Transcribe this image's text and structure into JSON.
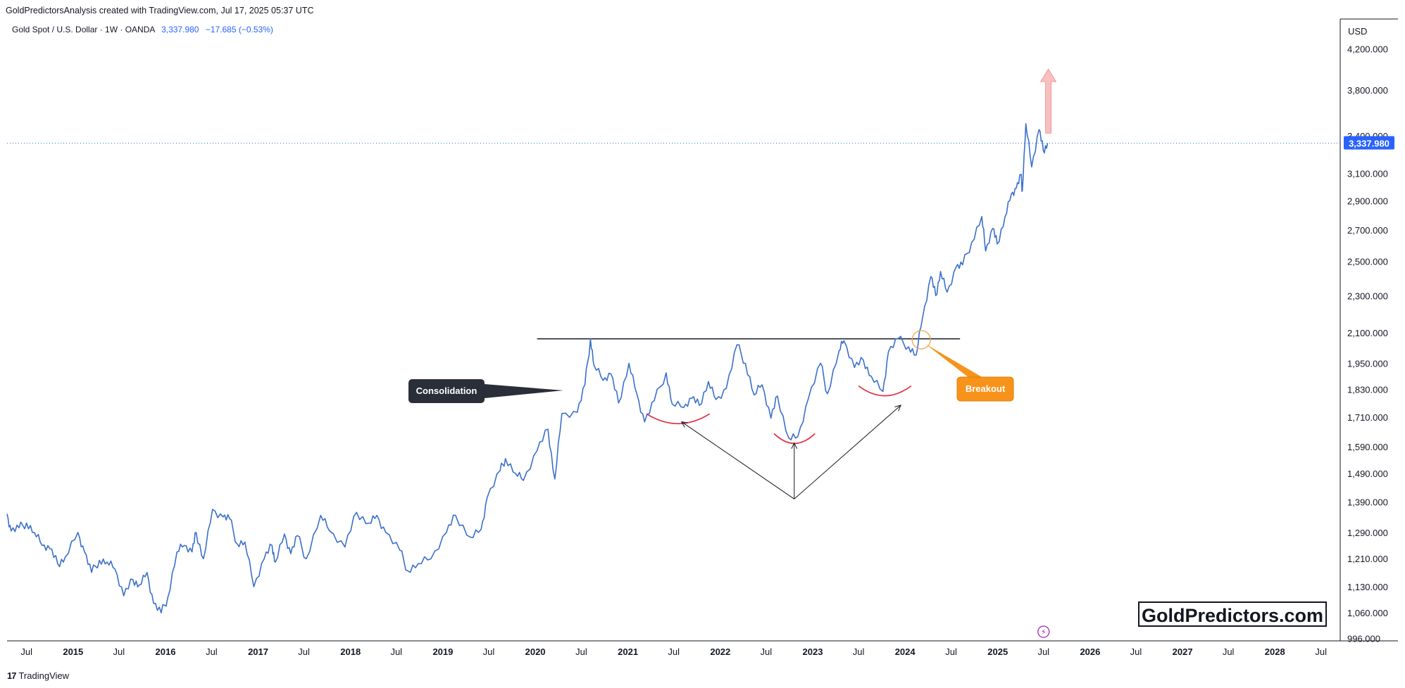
{
  "header": {
    "created_by": "GoldPredictorsAnalysis created with TradingView.com, Jul 17, 2025 05:37 UTC"
  },
  "symbol": {
    "description": "Gold Spot / U.S. Dollar · 1W · OANDA",
    "last_price": "3,337.980",
    "change": "−17.685 (−0.53%)"
  },
  "footer": {
    "brand": "TradingView",
    "logo_text": "17"
  },
  "watermark": {
    "text": "GoldPredictors.com"
  },
  "colors": {
    "price_line": "#3a6fcb",
    "accent_blue": "#2962ff",
    "resistance": "#131722",
    "cup_arcs": "#e03a4e",
    "breakout_callout": "#f7931a",
    "consolidation_callout": "#2a2e39",
    "arrow_up": "#f6b4b4",
    "breakout_circle": "#e9a94a"
  },
  "chart_data": {
    "type": "line",
    "series": [
      {
        "values_x_date": [
          [
            "2014-04-15",
            1350
          ],
          [
            "2014-05-01",
            1295
          ],
          [
            "2014-06-01",
            1305
          ],
          [
            "2014-07-01",
            1320
          ],
          [
            "2014-08-01",
            1290
          ],
          [
            "2014-09-01",
            1250
          ],
          [
            "2014-10-01",
            1240
          ],
          [
            "2014-11-01",
            1195
          ],
          [
            "2014-12-01",
            1215
          ],
          [
            "2015-01-20",
            1290
          ],
          [
            "2015-02-15",
            1230
          ],
          [
            "2015-03-15",
            1170
          ],
          [
            "2015-04-15",
            1205
          ],
          [
            "2015-05-15",
            1200
          ],
          [
            "2015-06-15",
            1180
          ],
          [
            "2015-07-20",
            1105
          ],
          [
            "2015-08-25",
            1150
          ],
          [
            "2015-09-20",
            1135
          ],
          [
            "2015-10-20",
            1170
          ],
          [
            "2015-11-15",
            1085
          ],
          [
            "2015-12-15",
            1060
          ],
          [
            "2016-01-10",
            1100
          ],
          [
            "2016-02-15",
            1230
          ],
          [
            "2016-03-15",
            1250
          ],
          [
            "2016-04-15",
            1230
          ],
          [
            "2016-05-01",
            1290
          ],
          [
            "2016-05-30",
            1210
          ],
          [
            "2016-07-05",
            1365
          ],
          [
            "2016-08-15",
            1340
          ],
          [
            "2016-09-10",
            1335
          ],
          [
            "2016-10-10",
            1255
          ],
          [
            "2016-11-10",
            1260
          ],
          [
            "2016-12-15",
            1130
          ],
          [
            "2017-01-25",
            1210
          ],
          [
            "2017-02-25",
            1250
          ],
          [
            "2017-03-10",
            1200
          ],
          [
            "2017-04-15",
            1285
          ],
          [
            "2017-05-10",
            1225
          ],
          [
            "2017-06-05",
            1280
          ],
          [
            "2017-07-10",
            1210
          ],
          [
            "2017-09-05",
            1345
          ],
          [
            "2017-10-10",
            1295
          ],
          [
            "2017-12-10",
            1245
          ],
          [
            "2018-01-25",
            1355
          ],
          [
            "2018-03-15",
            1320
          ],
          [
            "2018-04-15",
            1345
          ],
          [
            "2018-05-20",
            1290
          ],
          [
            "2018-07-15",
            1235
          ],
          [
            "2018-08-15",
            1175
          ],
          [
            "2018-09-25",
            1195
          ],
          [
            "2018-11-15",
            1210
          ],
          [
            "2019-01-15",
            1290
          ],
          [
            "2019-02-20",
            1345
          ],
          [
            "2019-04-20",
            1275
          ],
          [
            "2019-06-01",
            1300
          ],
          [
            "2019-06-25",
            1405
          ],
          [
            "2019-08-15",
            1500
          ],
          [
            "2019-09-05",
            1545
          ],
          [
            "2019-10-15",
            1490
          ],
          [
            "2019-11-15",
            1465
          ],
          [
            "2020-01-08",
            1575
          ],
          [
            "2020-02-20",
            1660
          ],
          [
            "2020-03-18",
            1470
          ],
          [
            "2020-04-15",
            1725
          ],
          [
            "2020-06-15",
            1730
          ],
          [
            "2020-07-15",
            1850
          ],
          [
            "2020-08-06",
            2070
          ],
          [
            "2020-08-20",
            1940
          ],
          [
            "2020-09-25",
            1870
          ],
          [
            "2020-10-25",
            1900
          ],
          [
            "2020-11-25",
            1770
          ],
          [
            "2021-01-05",
            1950
          ],
          [
            "2021-02-05",
            1810
          ],
          [
            "2021-03-08",
            1690
          ],
          [
            "2021-04-15",
            1780
          ],
          [
            "2021-06-01",
            1905
          ],
          [
            "2021-06-25",
            1765
          ],
          [
            "2021-08-09",
            1750
          ],
          [
            "2021-09-10",
            1790
          ],
          [
            "2021-10-10",
            1760
          ],
          [
            "2021-11-15",
            1865
          ],
          [
            "2021-12-15",
            1785
          ],
          [
            "2022-01-25",
            1835
          ],
          [
            "2022-03-08",
            2040
          ],
          [
            "2022-04-10",
            1950
          ],
          [
            "2022-05-15",
            1805
          ],
          [
            "2022-06-15",
            1850
          ],
          [
            "2022-07-20",
            1705
          ],
          [
            "2022-08-15",
            1800
          ],
          [
            "2022-09-28",
            1625
          ],
          [
            "2022-11-03",
            1630
          ],
          [
            "2022-12-15",
            1790
          ],
          [
            "2023-02-01",
            1950
          ],
          [
            "2023-02-28",
            1810
          ],
          [
            "2023-04-15",
            2010
          ],
          [
            "2023-05-04",
            2060
          ],
          [
            "2023-06-15",
            1930
          ],
          [
            "2023-07-20",
            1965
          ],
          [
            "2023-08-20",
            1890
          ],
          [
            "2023-10-05",
            1820
          ],
          [
            "2023-10-27",
            2005
          ],
          [
            "2023-12-04",
            2070
          ],
          [
            "2024-01-15",
            2030
          ],
          [
            "2024-02-14",
            1990
          ],
          [
            "2024-03-10",
            2180
          ],
          [
            "2024-04-12",
            2410
          ],
          [
            "2024-05-01",
            2300
          ],
          [
            "2024-05-20",
            2440
          ],
          [
            "2024-06-15",
            2320
          ],
          [
            "2024-07-20",
            2465
          ],
          [
            "2024-08-15",
            2480
          ],
          [
            "2024-09-20",
            2620
          ],
          [
            "2024-10-30",
            2790
          ],
          [
            "2024-11-14",
            2565
          ],
          [
            "2024-12-12",
            2710
          ],
          [
            "2024-12-30",
            2610
          ],
          [
            "2025-01-30",
            2790
          ],
          [
            "2025-02-24",
            2950
          ],
          [
            "2025-03-15",
            2990
          ],
          [
            "2025-04-03",
            3090
          ],
          [
            "2025-04-08",
            2970
          ],
          [
            "2025-04-22",
            3500
          ],
          [
            "2025-05-15",
            3150
          ],
          [
            "2025-06-13",
            3450
          ],
          [
            "2025-06-30",
            3280
          ],
          [
            "2025-07-17",
            3338
          ]
        ]
      }
    ],
    "x_axis": {
      "ticks": [
        "Jul",
        "2015",
        "Jul",
        "2016",
        "Jul",
        "2017",
        "Jul",
        "2018",
        "Jul",
        "2019",
        "Jul",
        "2020",
        "Jul",
        "2021",
        "Jul",
        "2022",
        "Jul",
        "2023",
        "Jul",
        "2024",
        "Jul",
        "2025",
        "Jul",
        "2026",
        "Jul",
        "2027",
        "Jul",
        "2028",
        "Jul"
      ],
      "range": [
        "2014-04-15",
        "2028-09-15"
      ]
    },
    "y_axis": {
      "unit": "USD",
      "scale": "log",
      "ticks": [
        "4,200.000",
        "3,800.000",
        "3,400.000",
        "3,100.000",
        "2,900.000",
        "2,700.000",
        "2,500.000",
        "2,300.000",
        "2,100.000",
        "1,950.000",
        "1,830.000",
        "1,710.000",
        "1,590.000",
        "1,490.000",
        "1,390.000",
        "1,290.000",
        "1,210.000",
        "1,130.000",
        "1,060.000",
        "996.000"
      ],
      "tick_values": [
        4200,
        3800,
        3400,
        3100,
        2900,
        2700,
        2500,
        2300,
        2100,
        1950,
        1830,
        1710,
        1590,
        1490,
        1390,
        1290,
        1210,
        1130,
        1060,
        996
      ],
      "range": [
        990,
        4520
      ]
    },
    "annotations": {
      "consolidation_label": "Consolidation",
      "breakout_label": "Breakout",
      "resistance_level": 2070,
      "resistance_from": "2020-01-08",
      "resistance_to": "2024-08-05",
      "last_price_line": 3338,
      "breakout_point": [
        "2024-03-05",
        2065
      ],
      "cup_bottoms": [
        {
          "from": "2021-03-15",
          "to": "2021-11-20",
          "bottom": 1700
        },
        {
          "from": "2022-08-01",
          "to": "2023-01-10",
          "bottom": 1620
        },
        {
          "from": "2023-07-01",
          "to": "2024-01-25",
          "bottom": 1820
        }
      ],
      "arrows_converge_to": [
        "2022-10-20",
        1400
      ],
      "arrows_targets": [
        [
          "2021-08-01",
          1690
        ],
        [
          "2022-10-20",
          1605
        ],
        [
          "2023-12-15",
          1760
        ]
      ],
      "projection_arrow_date": "2025-07-20",
      "projection_arrow_from": 3420,
      "projection_arrow_to": 4000,
      "event_marker": "⚡"
    }
  }
}
